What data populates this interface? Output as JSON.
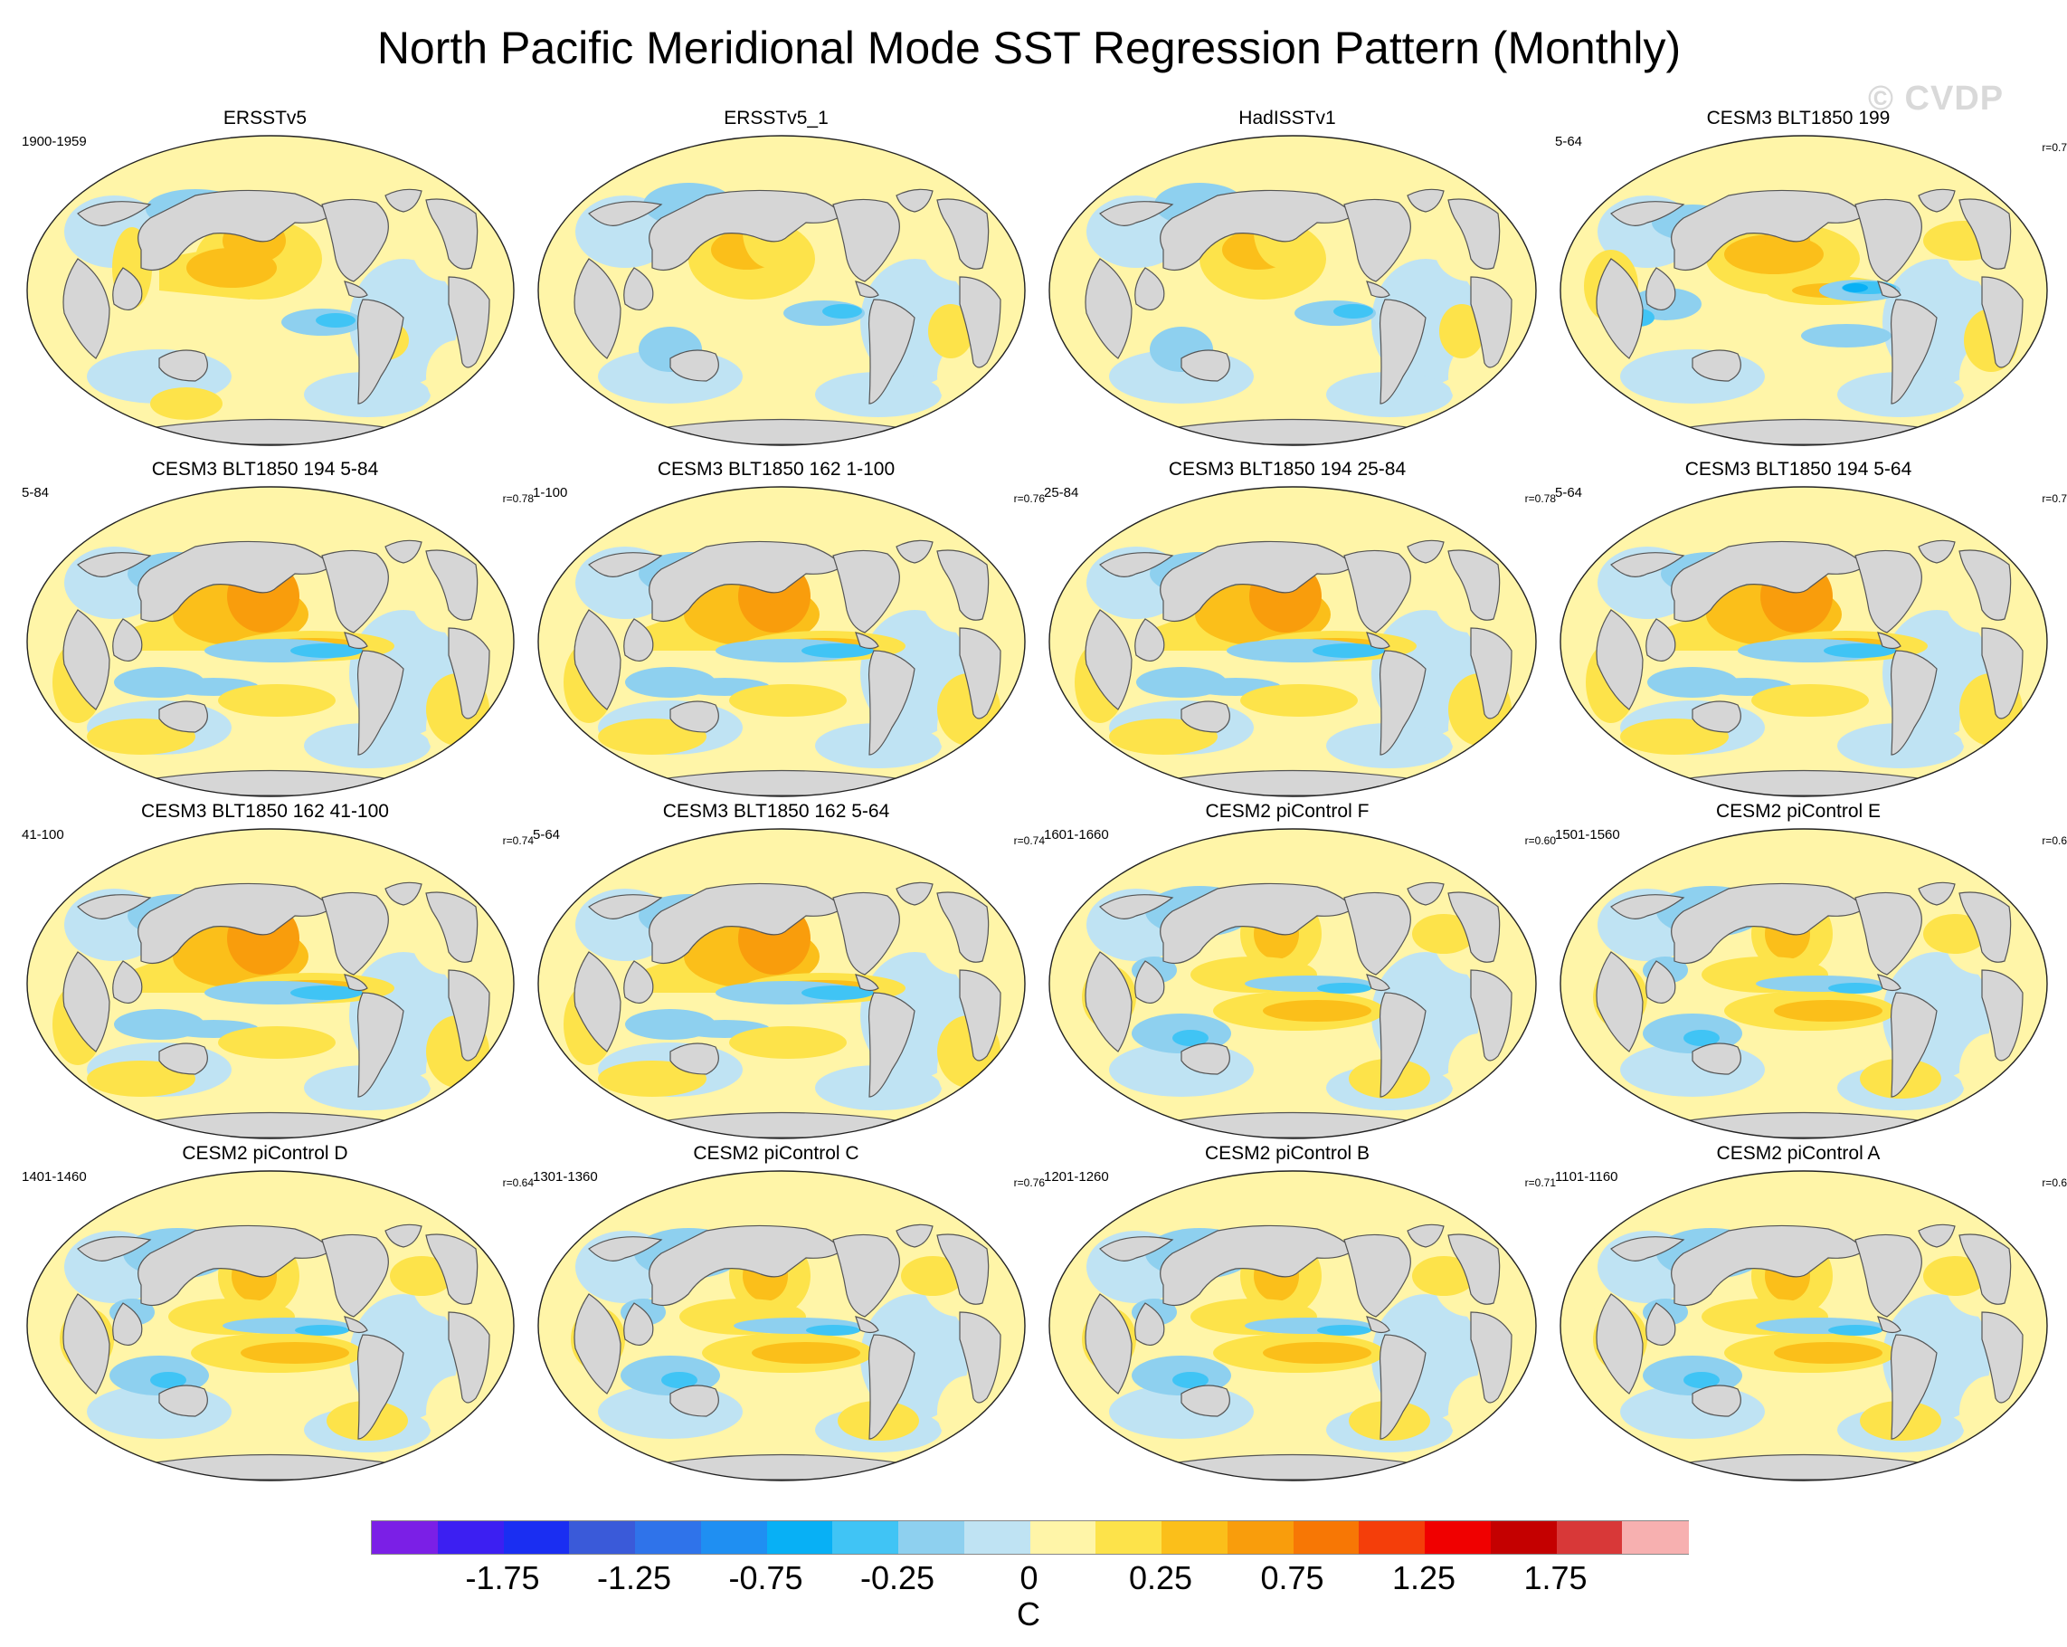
{
  "title": "North Pacific Meridional Mode SST Regression Pattern (Monthly)",
  "watermark": "© CVDP",
  "colors": {
    "land": "#d6d6d6",
    "coast": "#555555",
    "scale": [
      "#7b1fe6",
      "#3c1ff2",
      "#1a2ef2",
      "#3a5ad9",
      "#2f73ea",
      "#1f8ff2",
      "#08b0f5",
      "#40c4f5",
      "#8ed0ef",
      "#bfe3f3",
      "#fff5a8",
      "#fde34a",
      "#fbbf1a",
      "#f99d0c",
      "#f77705",
      "#f43e0a",
      "#f00000",
      "#c40000",
      "#d83838",
      "#f7b0b0"
    ]
  },
  "colorbar": {
    "ticks": [
      "-1.75",
      "-1.25",
      "-0.75",
      "-0.25",
      "0",
      "0.25",
      "0.75",
      "1.25",
      "1.75"
    ],
    "unit": "C"
  },
  "panels": [
    {
      "title": "ERSSTv5",
      "period": "1900-1959",
      "corr": "",
      "style": 0
    },
    {
      "title": "ERSSTv5_1",
      "period": "",
      "corr": "",
      "style": 1
    },
    {
      "title": "HadISSTv1",
      "period": "",
      "corr": "",
      "style": 1
    },
    {
      "title": "CESM3 BLT1850 199",
      "period": "5-64",
      "corr": "r=0.7",
      "style": 2
    },
    {
      "title": "CESM3 BLT1850 194 5-84",
      "period": "5-84",
      "corr": "r=0.78",
      "style": 3
    },
    {
      "title": "CESM3 BLT1850 162 1-100",
      "period": "1-100",
      "corr": "r=0.76",
      "style": 3
    },
    {
      "title": "CESM3 BLT1850 194 25-84",
      "period": "25-84",
      "corr": "r=0.78",
      "style": 3
    },
    {
      "title": "CESM3 BLT1850 194 5-64",
      "period": "5-64",
      "corr": "r=0.7",
      "style": 3
    },
    {
      "title": "CESM3 BLT1850 162 41-100",
      "period": "41-100",
      "corr": "r=0.74",
      "style": 3
    },
    {
      "title": "CESM3 BLT1850 162 5-64",
      "period": "5-64",
      "corr": "r=0.74",
      "style": 3
    },
    {
      "title": "CESM2 piControl F",
      "period": "1601-1660",
      "corr": "r=0.60",
      "style": 4
    },
    {
      "title": "CESM2 piControl E",
      "period": "1501-1560",
      "corr": "r=0.6",
      "style": 4
    },
    {
      "title": "CESM2 piControl D",
      "period": "1401-1460",
      "corr": "r=0.64",
      "style": 4
    },
    {
      "title": "CESM2 piControl C",
      "period": "1301-1360",
      "corr": "r=0.76",
      "style": 4
    },
    {
      "title": "CESM2 piControl B",
      "period": "1201-1260",
      "corr": "r=0.71",
      "style": 4
    },
    {
      "title": "CESM2 piControl A",
      "period": "1101-1160",
      "corr": "r=0.6",
      "style": 4
    }
  ]
}
